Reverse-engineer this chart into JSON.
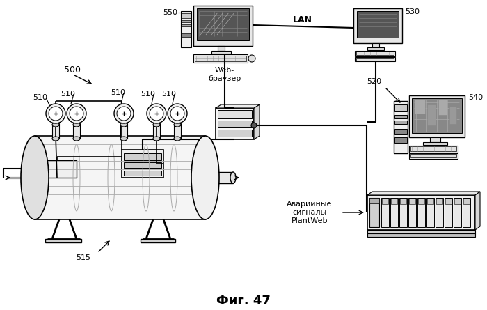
{
  "bg_color": "#ffffff",
  "line_color": "#000000",
  "fig_label": "Фиг. 47",
  "label_500": "500",
  "label_510": "510",
  "label_515": "515",
  "label_520": "520",
  "label_530": "530",
  "label_540": "540",
  "label_550": "550",
  "label_lan": "LAN",
  "label_web": "Web-\nбраузер",
  "label_alarm": "Аварийные\nсигналы\nPlantWeb"
}
